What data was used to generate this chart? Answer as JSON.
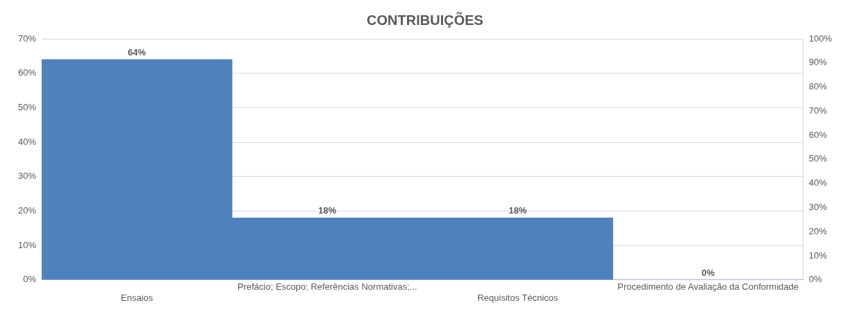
{
  "chart_data": {
    "type": "bar",
    "title": "CONTRIBUIÇÕES",
    "categories": [
      "Ensaios",
      "Prefácio; Escopo; Referências Normativas;...",
      "Requisitos Técnicos",
      "Procedimento de Avaliação da Conformidade"
    ],
    "values": [
      64,
      18,
      18,
      0
    ],
    "color": "#4f81bd",
    "value_labels": [
      "64%",
      "18%",
      "18%",
      "0%"
    ],
    "ylim": [
      0,
      70
    ],
    "yticks": [
      {
        "value": 0,
        "label": "0%"
      },
      {
        "value": 10,
        "label": "10%"
      },
      {
        "value": 20,
        "label": "20%"
      },
      {
        "value": 30,
        "label": "30%"
      },
      {
        "value": 40,
        "label": "40%"
      },
      {
        "value": 50,
        "label": "50%"
      },
      {
        "value": 60,
        "label": "60%"
      },
      {
        "value": 70,
        "label": "70%"
      }
    ],
    "y2lim": [
      0,
      100
    ],
    "y2ticks": [
      {
        "value": 0,
        "label": "0%"
      },
      {
        "value": 10,
        "label": "10%"
      },
      {
        "value": 20,
        "label": "20%"
      },
      {
        "value": 30,
        "label": "30%"
      },
      {
        "value": 40,
        "label": "40%"
      },
      {
        "value": 50,
        "label": "50%"
      },
      {
        "value": 60,
        "label": "60%"
      },
      {
        "value": 70,
        "label": "70%"
      },
      {
        "value": 80,
        "label": "80%"
      },
      {
        "value": 90,
        "label": "90%"
      },
      {
        "value": 100,
        "label": "100%"
      }
    ],
    "grid": "y",
    "legend": false
  }
}
